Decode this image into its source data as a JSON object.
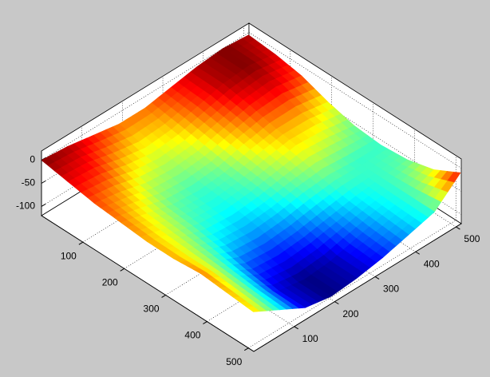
{
  "chart_data": {
    "type": "surface",
    "x": [
      0,
      64,
      128,
      192,
      256,
      320,
      384,
      448,
      512
    ],
    "y": [
      0,
      64,
      128,
      192,
      256,
      320,
      384,
      448,
      512
    ],
    "z": [
      [
        0,
        -5,
        -15,
        -25,
        -25,
        -15,
        -5,
        0,
        -5
      ],
      [
        -10,
        -15,
        -30,
        -40,
        -35,
        -20,
        -5,
        0,
        -10
      ],
      [
        -20,
        -30,
        -45,
        -50,
        -45,
        -30,
        -15,
        -10,
        -20
      ],
      [
        -25,
        -40,
        -55,
        -60,
        -55,
        -40,
        -30,
        -30,
        -40
      ],
      [
        -30,
        -45,
        -60,
        -65,
        -60,
        -50,
        -40,
        -45,
        -55
      ],
      [
        -30,
        -50,
        -70,
        -75,
        -70,
        -60,
        -55,
        -60,
        -60
      ],
      [
        -25,
        -55,
        -85,
        -90,
        -85,
        -75,
        -65,
        -60,
        -55
      ],
      [
        -30,
        -60,
        -95,
        -105,
        -100,
        -85,
        -70,
        -60,
        -40
      ],
      [
        -35,
        -65,
        -95,
        -105,
        -100,
        -90,
        -75,
        -60,
        -10
      ]
    ],
    "colormap": "jet",
    "xlim": [
      0,
      513
    ],
    "ylim": [
      0,
      513
    ],
    "zlim": [
      -120,
      20
    ],
    "xticks": [
      100,
      200,
      300,
      400,
      500
    ],
    "yticks": [
      100,
      200,
      300,
      400,
      500
    ],
    "zticks": [
      -100,
      -50,
      0
    ],
    "grid": true
  }
}
